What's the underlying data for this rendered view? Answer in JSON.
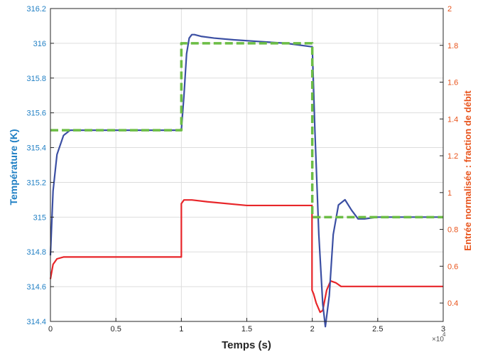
{
  "chart_data": {
    "type": "line",
    "xlabel": "Temps (s)",
    "ylabel_left": "Température (K)",
    "ylabel_right": "Entrée normalisée : fraction de débit",
    "x_multiplier_label": "×10",
    "x_multiplier_exp": "4",
    "xlim": [
      0,
      3
    ],
    "ylim_left": [
      314.4,
      316.2
    ],
    "ylim_right": [
      0.3,
      2.0
    ],
    "x_ticks": [
      0,
      0.5,
      1,
      1.5,
      2,
      2.5,
      3
    ],
    "x_tick_labels": [
      "0",
      "0.5",
      "1",
      "1.5",
      "2",
      "2.5",
      "3"
    ],
    "y_ticks_left": [
      314.4,
      314.6,
      314.8,
      315,
      315.2,
      315.4,
      315.6,
      315.8,
      316,
      316.2
    ],
    "y_tick_labels_left": [
      "314.4",
      "314.6",
      "314.8",
      "315",
      "315.2",
      "315.4",
      "315.6",
      "315.8",
      "316",
      "316.2"
    ],
    "y_ticks_right": [
      0.4,
      0.6,
      0.8,
      1.0,
      1.2,
      1.4,
      1.6,
      1.8,
      2.0
    ],
    "y_tick_labels_right": [
      "0.4",
      "0.6",
      "0.8",
      "1",
      "1.2",
      "1.4",
      "1.6",
      "1.8",
      "2"
    ],
    "grid": true,
    "colors": {
      "left_axis": "#1f7fc4",
      "right_axis": "#e8531b",
      "temperature": "#3b4fa3",
      "setpoint": "#6cbd45",
      "input": "#e8262a",
      "grid": "#dddddd"
    },
    "series": [
      {
        "axis": "left",
        "style": "dashed",
        "x": [
          0,
          1.0,
          1.0,
          2.0,
          2.0,
          3.0
        ],
        "y": [
          315.5,
          315.5,
          316.0,
          316.0,
          315.0,
          315.0
        ]
      },
      {
        "axis": "left",
        "style": "solid",
        "x": [
          0,
          0.02,
          0.05,
          0.1,
          0.15,
          0.2,
          0.3,
          0.4,
          0.5,
          0.6,
          0.8,
          1.0,
          1.02,
          1.04,
          1.06,
          1.08,
          1.1,
          1.15,
          1.25,
          1.4,
          1.6,
          1.8,
          2.0,
          2.02,
          2.05,
          2.08,
          2.1,
          2.13,
          2.16,
          2.2,
          2.25,
          2.3,
          2.35,
          2.4,
          2.5,
          2.7,
          3.0
        ],
        "y": [
          314.78,
          315.15,
          315.36,
          315.47,
          315.5,
          315.5,
          315.5,
          315.5,
          315.5,
          315.5,
          315.5,
          315.5,
          315.7,
          315.94,
          316.03,
          316.05,
          316.05,
          316.04,
          316.03,
          316.02,
          316.01,
          316.0,
          315.98,
          315.5,
          314.9,
          314.5,
          314.37,
          314.55,
          314.9,
          315.07,
          315.1,
          315.04,
          314.99,
          314.99,
          315.0,
          315.0,
          315.0
        ]
      },
      {
        "axis": "right",
        "style": "solid",
        "x": [
          0,
          0.02,
          0.05,
          0.1,
          0.2,
          0.4,
          0.6,
          0.8,
          1.0,
          1.0,
          1.02,
          1.08,
          1.2,
          1.5,
          1.8,
          1.998,
          1.998,
          2.01,
          2.03,
          2.06,
          2.08,
          2.11,
          2.14,
          2.18,
          2.22,
          2.3,
          2.5,
          3.0
        ],
        "y": [
          0.53,
          0.61,
          0.64,
          0.65,
          0.65,
          0.65,
          0.65,
          0.65,
          0.65,
          0.94,
          0.96,
          0.96,
          0.95,
          0.93,
          0.93,
          0.93,
          0.47,
          0.45,
          0.4,
          0.35,
          0.36,
          0.47,
          0.52,
          0.51,
          0.49,
          0.49,
          0.49,
          0.49
        ]
      }
    ]
  }
}
